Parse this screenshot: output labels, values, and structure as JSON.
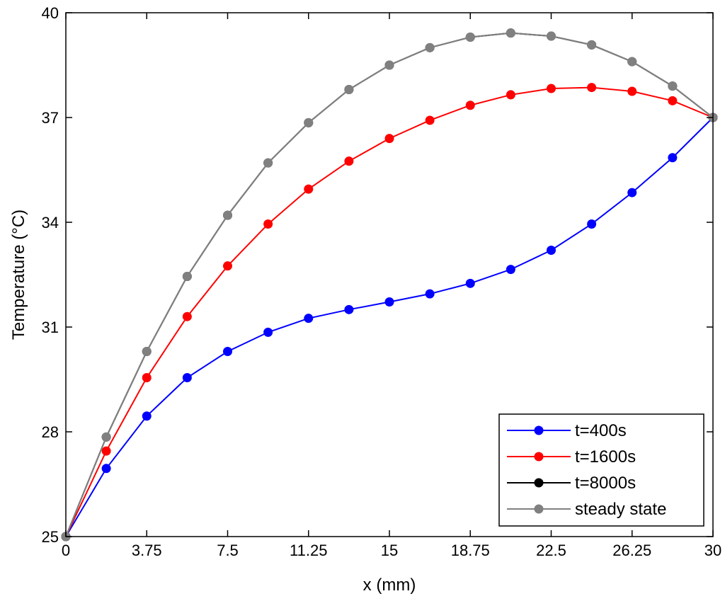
{
  "chart_data": {
    "type": "line",
    "title": "",
    "xlabel": "x (mm)",
    "ylabel": "Temperature (°C)",
    "xlim": [
      0,
      30
    ],
    "ylim": [
      25,
      40
    ],
    "xticks": [
      0,
      3.75,
      7.5,
      11.25,
      15,
      18.75,
      22.5,
      26.25,
      30
    ],
    "xtick_labels": [
      "0",
      "3.75",
      "7.5",
      "11.25",
      "15",
      "18.75",
      "22.5",
      "26.25",
      "30"
    ],
    "yticks": [
      25,
      28,
      31,
      34,
      37,
      40
    ],
    "ytick_labels": [
      "25",
      "28",
      "31",
      "34",
      "37",
      "40"
    ],
    "grid": false,
    "legend_position": "bottom-right",
    "x": [
      0,
      1.875,
      3.75,
      5.625,
      7.5,
      9.375,
      11.25,
      13.125,
      15,
      16.875,
      18.75,
      20.625,
      22.5,
      24.375,
      26.25,
      28.125,
      30
    ],
    "series": [
      {
        "name": "t=400s",
        "color": "#0000ff",
        "values": [
          25,
          26.95,
          28.45,
          29.55,
          30.3,
          30.85,
          31.25,
          31.5,
          31.72,
          31.95,
          32.25,
          32.65,
          33.2,
          33.95,
          34.85,
          35.85,
          37
        ]
      },
      {
        "name": "t=1600s",
        "color": "#ff0000",
        "values": [
          25,
          27.45,
          29.55,
          31.3,
          32.75,
          33.95,
          34.95,
          35.75,
          36.4,
          36.92,
          37.35,
          37.65,
          37.83,
          37.86,
          37.75,
          37.48,
          37
        ]
      },
      {
        "name": "t=8000s",
        "color": "#000000",
        "values": [
          25,
          27.85,
          30.3,
          32.45,
          34.2,
          35.7,
          36.85,
          37.8,
          38.5,
          39.0,
          39.3,
          39.42,
          39.33,
          39.08,
          38.6,
          37.9,
          37
        ]
      },
      {
        "name": "steady state",
        "color": "#808080",
        "values": [
          25,
          27.85,
          30.3,
          32.45,
          34.2,
          35.7,
          36.85,
          37.8,
          38.5,
          39.0,
          39.3,
          39.42,
          39.33,
          39.08,
          38.6,
          37.9,
          37
        ]
      }
    ]
  }
}
